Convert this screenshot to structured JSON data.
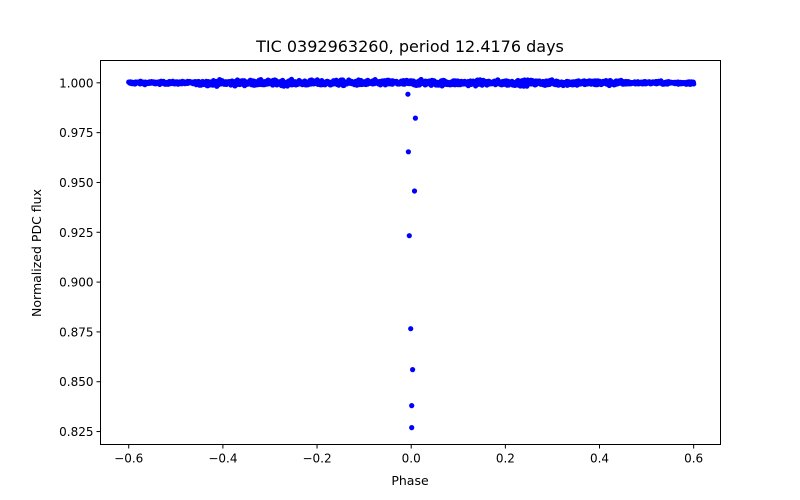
{
  "chart_data": {
    "type": "scatter",
    "title": "TIC 0392963260, period 12.4176 days",
    "xlabel": "Phase",
    "ylabel": "Normalized PDC flux",
    "xlim": [
      -0.66,
      0.657
    ],
    "ylim": [
      0.8185,
      1.0112
    ],
    "xticks": [
      -0.6,
      -0.4,
      -0.2,
      0.0,
      0.2,
      0.4,
      0.6
    ],
    "xtick_labels": [
      "−0.6",
      "−0.4",
      "−0.2",
      "0.0",
      "0.2",
      "0.4",
      "0.6"
    ],
    "yticks": [
      0.825,
      0.85,
      0.875,
      0.9,
      0.925,
      0.95,
      0.975,
      1.0
    ],
    "ytick_labels": [
      "0.825",
      "0.850",
      "0.875",
      "0.900",
      "0.925",
      "0.950",
      "0.975",
      "1.000"
    ],
    "grid": false,
    "legend": null,
    "marker_color": "#0000ff",
    "series": [
      {
        "name": "baseline",
        "description": "dense out-of-transit band, phase -0.6 to 0.6, flux ~0.998 to 1.002",
        "x_range": [
          -0.6,
          0.6
        ],
        "y_center": 1.0,
        "y_scatter": 0.0012
      },
      {
        "name": "transit",
        "x": [
          -0.007,
          0.009,
          -0.006,
          0.007,
          -0.004,
          -0.001,
          0.003,
          0.001,
          0.001
        ],
        "y": [
          0.9943,
          0.9823,
          0.9654,
          0.9457,
          0.9233,
          0.8766,
          0.8561,
          0.838,
          0.827
        ]
      }
    ]
  }
}
